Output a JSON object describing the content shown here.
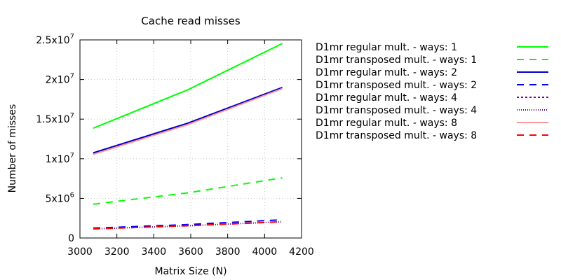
{
  "chart_data": {
    "type": "line",
    "title": "Cache read misses",
    "xlabel": "Matrix Size (N)",
    "ylabel": "Number of misses",
    "xlim": [
      3000,
      4200
    ],
    "ylim": [
      0,
      25000000
    ],
    "grid": true,
    "legend_position": "right",
    "x_ticks": [
      {
        "value": 3000,
        "label": "3000"
      },
      {
        "value": 3200,
        "label": "3200"
      },
      {
        "value": 3400,
        "label": "3400"
      },
      {
        "value": 3600,
        "label": "3600"
      },
      {
        "value": 3800,
        "label": "3800"
      },
      {
        "value": 4000,
        "label": "4000"
      },
      {
        "value": 4200,
        "label": "4200"
      }
    ],
    "y_ticks": [
      {
        "value": 0,
        "mantissa": "0",
        "exp": ""
      },
      {
        "value": 5000000,
        "mantissa": "5x10",
        "exp": "6"
      },
      {
        "value": 10000000,
        "mantissa": "1x10",
        "exp": "7"
      },
      {
        "value": 15000000,
        "mantissa": "1.5x10",
        "exp": "7"
      },
      {
        "value": 20000000,
        "mantissa": "2x10",
        "exp": "7"
      },
      {
        "value": 25000000,
        "mantissa": "2.5x10",
        "exp": "7"
      }
    ],
    "x": [
      3072,
      3584,
      4096
    ],
    "series": [
      {
        "name": "D1mr regular mult. - ways: 1",
        "values": [
          13850000,
          18700000,
          24550000
        ],
        "color": "#00ff00",
        "dash": "solid"
      },
      {
        "name": "D1mr transposed mult. - ways: 1",
        "values": [
          4270000,
          5700000,
          7600000
        ],
        "color": "#00ff00",
        "dash": "dashed"
      },
      {
        "name": "D1mr regular mult. - ways: 2",
        "values": [
          10750000,
          14500000,
          19000000
        ],
        "color": "#0000c8",
        "dash": "solid"
      },
      {
        "name": "D1mr transposed mult. - ways: 2",
        "values": [
          1250000,
          1700000,
          2300000
        ],
        "color": "#0000ff",
        "dash": "dashed"
      },
      {
        "name": "D1mr regular mult. - ways: 4",
        "values": [
          10600000,
          14350000,
          18850000
        ],
        "color": "#800080",
        "dash": "dotted"
      },
      {
        "name": "D1mr transposed mult. - ways: 4",
        "values": [
          1150000,
          1550000,
          2050000
        ],
        "color": "#4b0082",
        "dash": "fine-dotted"
      },
      {
        "name": "D1mr regular mult. - ways: 8",
        "values": [
          10550000,
          14300000,
          18850000
        ],
        "color": "#ff9999",
        "dash": "solid"
      },
      {
        "name": "D1mr transposed mult. - ways: 8",
        "values": [
          1150000,
          1550000,
          2050000
        ],
        "color": "#ff0000",
        "dash": "dashed"
      }
    ]
  }
}
